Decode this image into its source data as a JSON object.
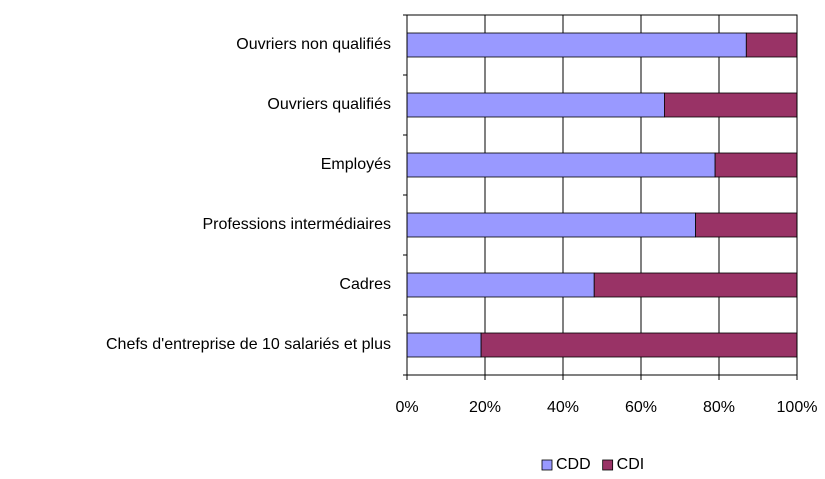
{
  "chart_data": {
    "type": "stacked_bar_horizontal",
    "categories": [
      "Ouvriers non qualifiés",
      "Ouvriers qualifiés",
      "Employés",
      "Professions intermédiaires",
      "Cadres",
      "Chefs d'entreprise de 10 salariés et plus"
    ],
    "series": [
      {
        "name": "CDD",
        "color": "#9999ff",
        "values": [
          87,
          66,
          79,
          74,
          48,
          19
        ]
      },
      {
        "name": "CDI",
        "color": "#993366",
        "values": [
          13,
          34,
          21,
          26,
          52,
          81
        ]
      }
    ],
    "xlim": [
      0,
      100
    ],
    "xticks": [
      {
        "value": 0,
        "label": "0%"
      },
      {
        "value": 20,
        "label": "20%"
      },
      {
        "value": 40,
        "label": "40%"
      },
      {
        "value": 60,
        "label": "60%"
      },
      {
        "value": 80,
        "label": "80%"
      },
      {
        "value": 100,
        "label": "100%"
      }
    ],
    "grid": true,
    "legend": "bottom"
  }
}
